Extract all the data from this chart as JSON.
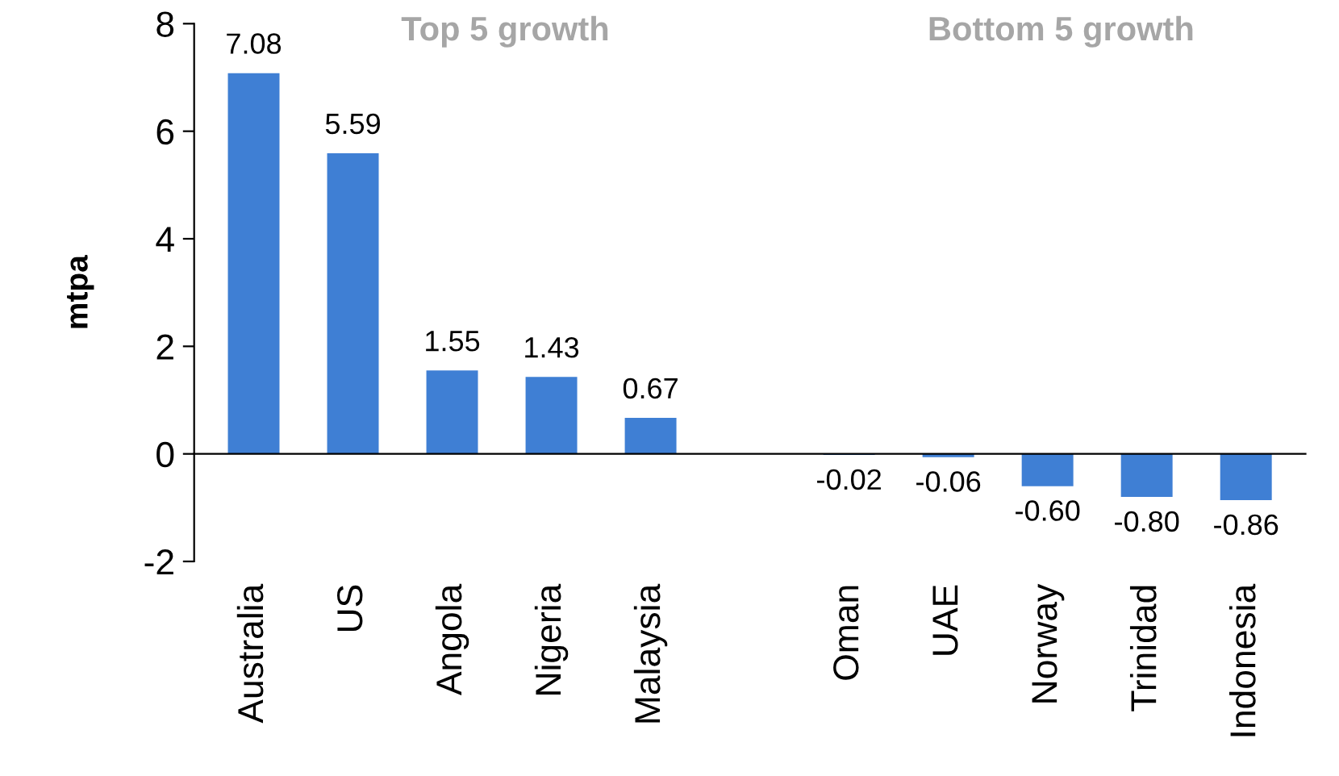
{
  "chart_data": {
    "type": "bar",
    "ylabel": "mtpa",
    "categories": [
      "Australia",
      "US",
      "Angola",
      "Nigeria",
      "Malaysia",
      null,
      "Oman",
      "UAE",
      "Norway",
      "Trinidad",
      "Indonesia"
    ],
    "values": [
      7.08,
      5.59,
      1.55,
      1.43,
      0.67,
      null,
      -0.02,
      -0.06,
      -0.6,
      -0.8,
      -0.86
    ],
    "value_labels": [
      "7.08",
      "5.59",
      "1.55",
      "1.43",
      "0.67",
      null,
      "-0.02",
      "-0.06",
      "-0.60",
      "-0.80",
      "-0.86"
    ],
    "color": "#3f7fd4",
    "ylim": [
      -2,
      8
    ],
    "yticks": [
      -2,
      0,
      2,
      4,
      6,
      8
    ],
    "legend": false,
    "annotations": [
      "Top 5 growth",
      "Bottom 5 growth"
    ]
  }
}
